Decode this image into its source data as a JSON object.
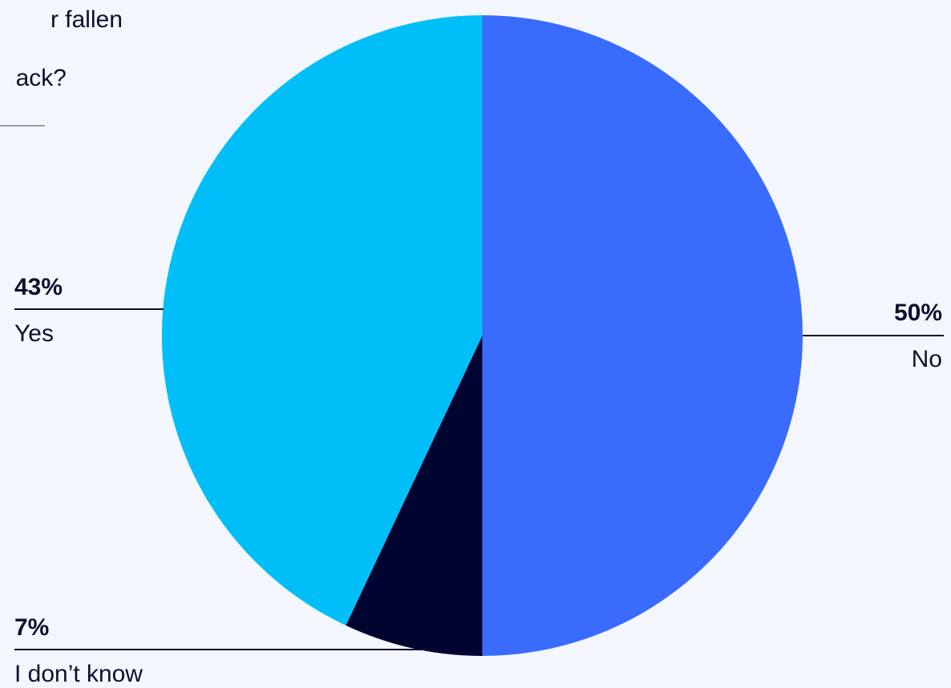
{
  "chart_data": {
    "type": "pie",
    "title_lines": [
      "r fallen",
      "ack?"
    ],
    "slices": [
      {
        "label": "No",
        "value": 50,
        "value_label": "50%",
        "color": "#396cfd"
      },
      {
        "label": "I don’t know",
        "value": 7,
        "value_label": "7%",
        "color": "#000430"
      },
      {
        "label": "Yes",
        "value": 43,
        "value_label": "43%",
        "color": "#00bff8"
      }
    ],
    "start_angle_deg": 0,
    "direction": "clockwise",
    "legend": "none",
    "label_color": "#0f0f2d",
    "leader_line_color": "#0f0f2d"
  }
}
